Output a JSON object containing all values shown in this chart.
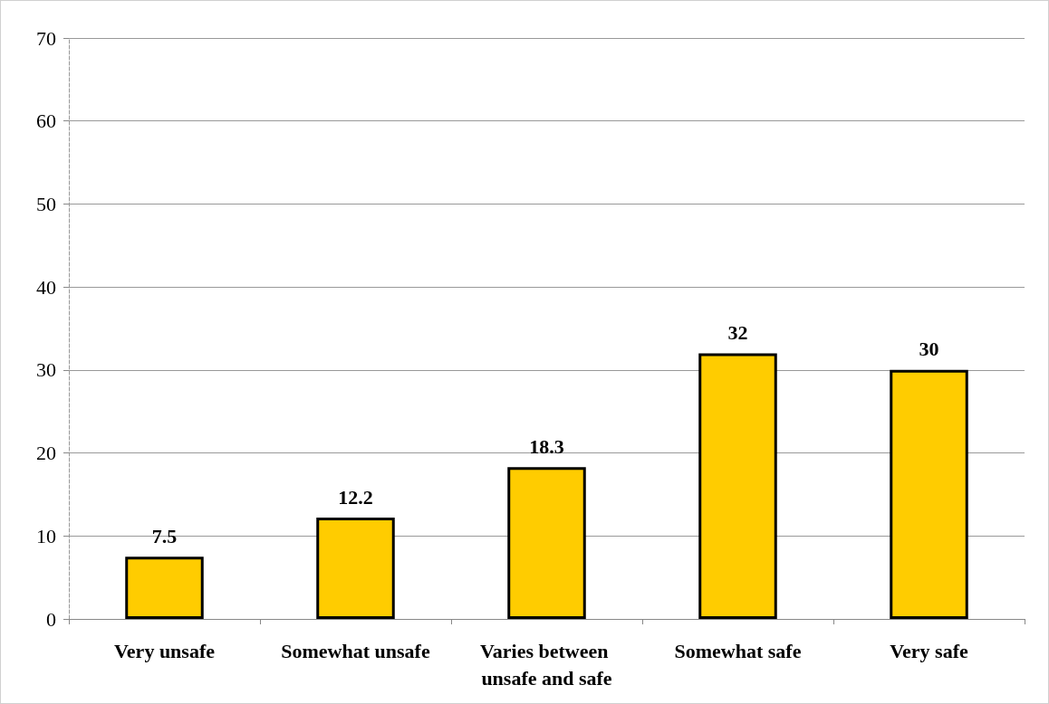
{
  "chart_data": {
    "type": "bar",
    "categories": [
      "Very unsafe",
      "Somewhat unsafe",
      "Varies between unsafe and safe",
      "Somewhat safe",
      "Very safe"
    ],
    "values": [
      7.5,
      12.2,
      18.3,
      32,
      30
    ],
    "color": "#ffcc00",
    "ylim": [
      0,
      70
    ],
    "yticks": [
      0,
      10,
      20,
      30,
      40,
      50,
      60,
      70
    ],
    "grid": "y",
    "data_labels": true
  }
}
